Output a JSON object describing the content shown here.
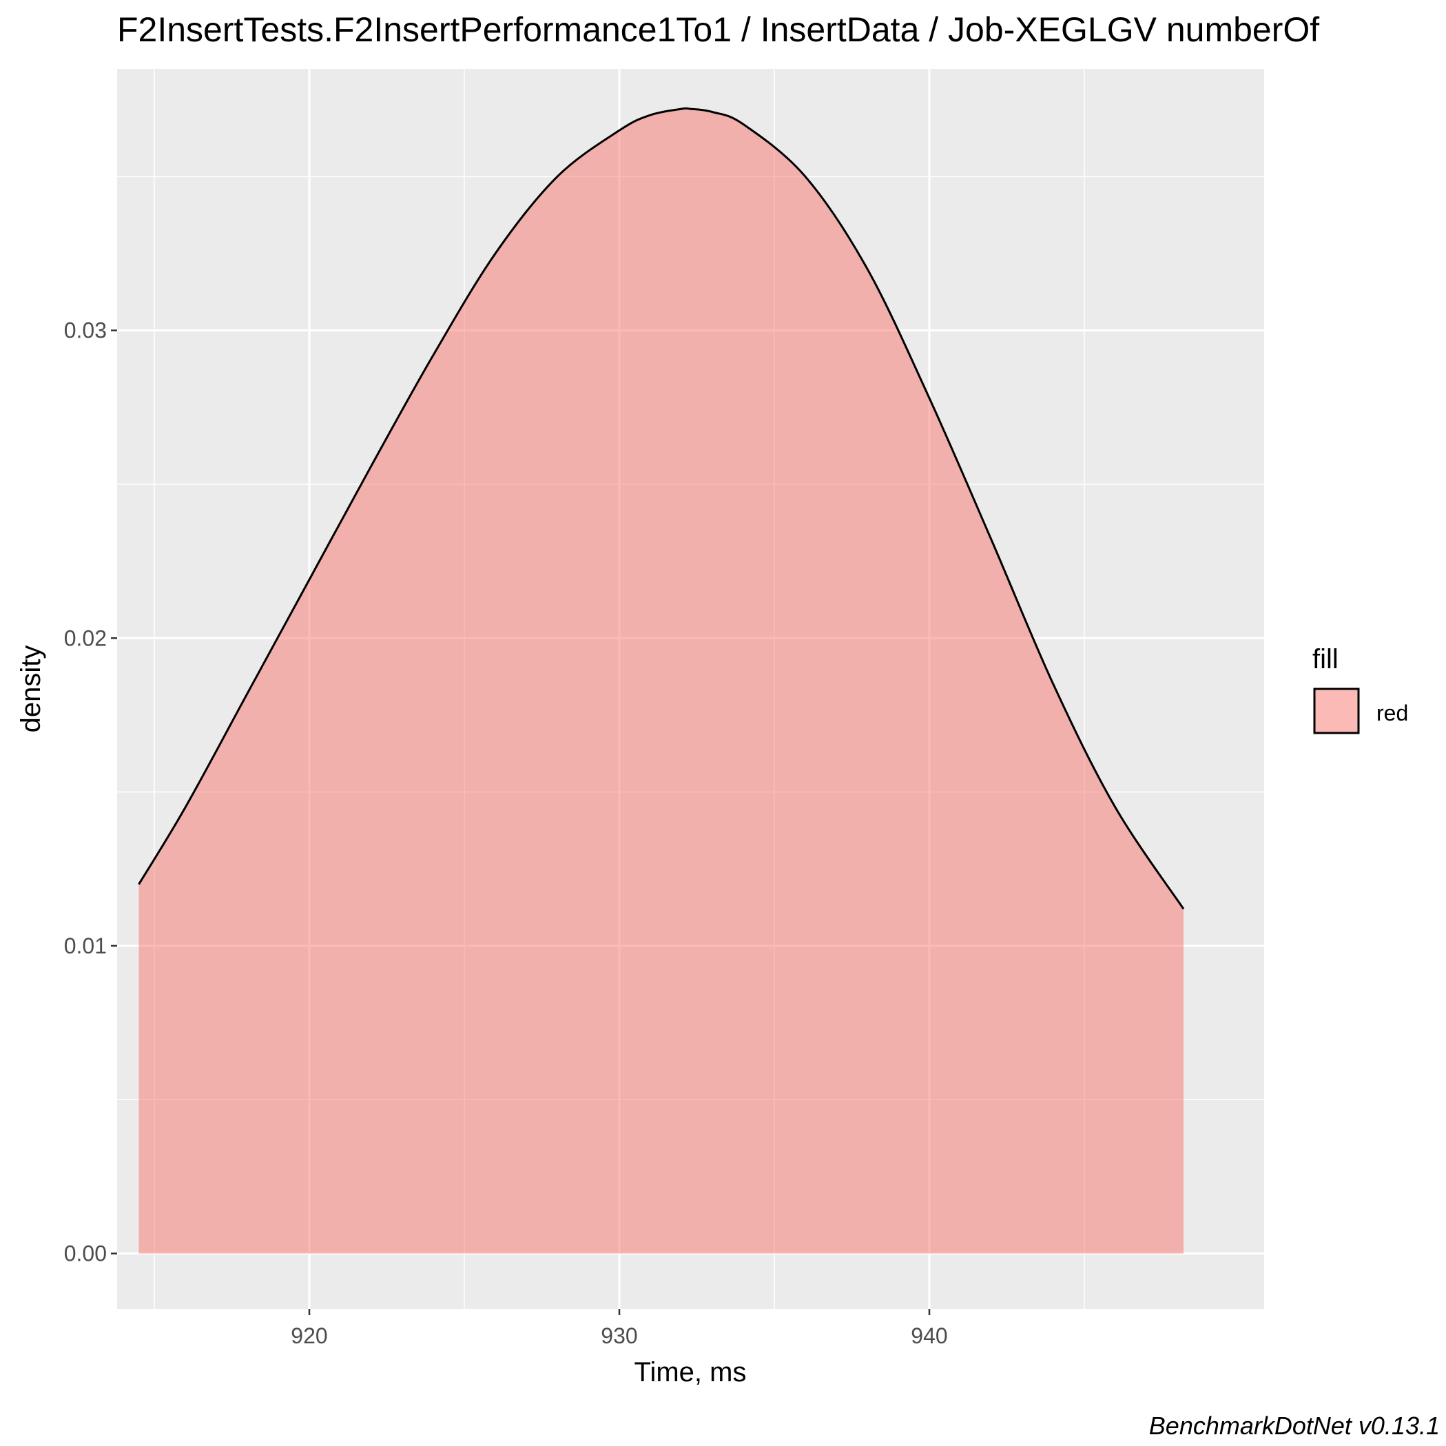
{
  "chart_data": {
    "type": "area",
    "title": "F2InsertTests.F2InsertPerformance1To1 / InsertData / Job-XEGLGV numberOf",
    "xlabel": "Time, ms",
    "ylabel": "density",
    "xlim": [
      913.8,
      950.8
    ],
    "ylim": [
      -0.0018,
      0.0385
    ],
    "x_ticks": [
      920,
      930,
      940
    ],
    "x_tick_labels": [
      "920",
      "930",
      "940"
    ],
    "y_ticks": [
      0.0,
      0.01,
      0.02,
      0.03
    ],
    "y_tick_labels": [
      "0.00",
      "0.01",
      "0.02",
      "0.03"
    ],
    "grid": true,
    "legend": {
      "title": "fill",
      "position": "right",
      "entries": [
        "red"
      ]
    },
    "caption": "BenchmarkDotNet v0.13.1",
    "series": [
      {
        "name": "red",
        "x": [
          914.5,
          916,
          918,
          920,
          922,
          924,
          926,
          928,
          930,
          931,
          932,
          932.3,
          933,
          934,
          936,
          938,
          940,
          942,
          944,
          946,
          948.2
        ],
        "y": [
          0.012,
          0.0145,
          0.0182,
          0.0219,
          0.0256,
          0.0292,
          0.0325,
          0.035,
          0.0365,
          0.037,
          0.0372,
          0.0372,
          0.0371,
          0.0367,
          0.035,
          0.032,
          0.0278,
          0.0232,
          0.0185,
          0.0145,
          0.0112
        ],
        "fill": "#f8766d",
        "fill_opacity": 0.5,
        "line": "#000000"
      }
    ]
  }
}
